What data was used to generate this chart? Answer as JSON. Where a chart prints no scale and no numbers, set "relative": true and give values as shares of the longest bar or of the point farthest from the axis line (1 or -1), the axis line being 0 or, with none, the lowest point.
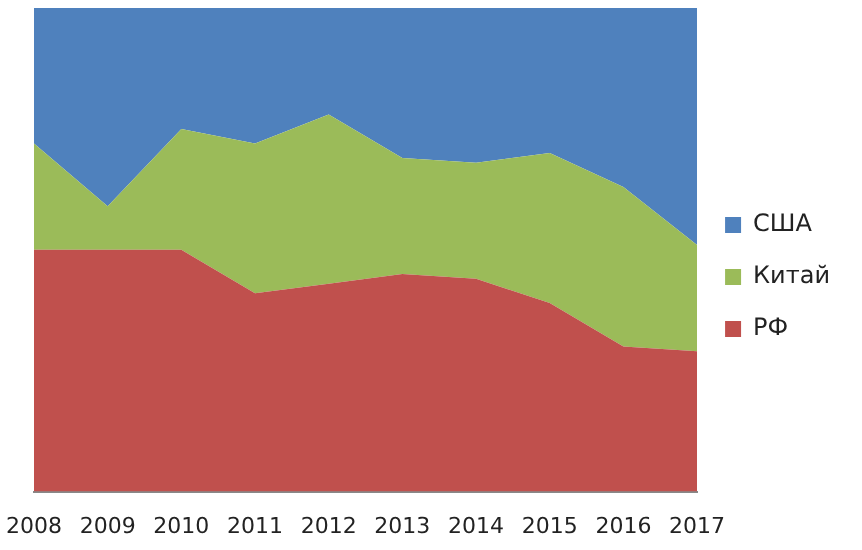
{
  "chart_data": {
    "type": "area",
    "stacked": true,
    "relative": true,
    "legend": "right",
    "categories": [
      "2008",
      "2009",
      "2010",
      "2011",
      "2012",
      "2013",
      "2014",
      "2015",
      "2016",
      "2017"
    ],
    "series": [
      {
        "name": "РФ",
        "color": "#c0504d",
        "values": [
          0.5,
          0.5,
          0.5,
          0.41,
          0.43,
          0.45,
          0.44,
          0.39,
          0.3,
          0.29
        ]
      },
      {
        "name": "Китай",
        "color": "#9bbb59",
        "values": [
          0.22,
          0.09,
          0.25,
          0.31,
          0.35,
          0.24,
          0.24,
          0.31,
          0.33,
          0.22
        ]
      },
      {
        "name": "США",
        "color": "#4f81bd",
        "values": [
          0.28,
          0.41,
          0.25,
          0.28,
          0.22,
          0.31,
          0.32,
          0.3,
          0.37,
          0.49
        ]
      }
    ]
  }
}
